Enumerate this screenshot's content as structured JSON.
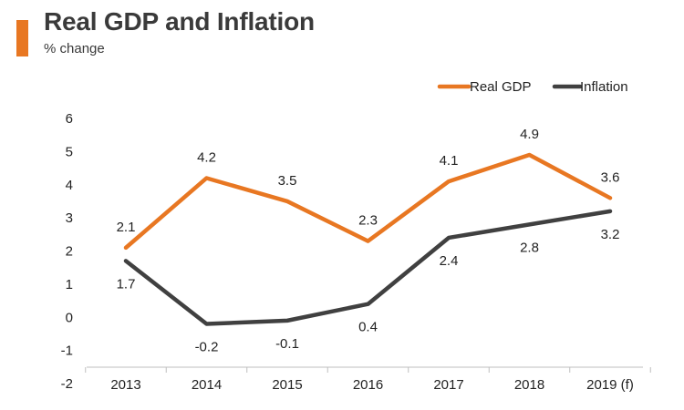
{
  "header": {
    "title": "Real GDP and Inflation",
    "subtitle": "% change",
    "accent_color": "#e87722"
  },
  "chart_data": {
    "type": "line",
    "title": "Real GDP and Inflation",
    "subtitle": "% change",
    "categories": [
      "2013",
      "2014",
      "2015",
      "2016",
      "2017",
      "2018",
      "2019 (f)"
    ],
    "ylim": [
      -2,
      6
    ],
    "yticks": [
      "6",
      "5",
      "4",
      "3",
      "2",
      "1",
      "0",
      "-1",
      "-2"
    ],
    "grid": false,
    "legend_position": "top-right",
    "series": [
      {
        "name": "Real GDP",
        "color": "#e87722",
        "values": [
          2.1,
          4.2,
          3.5,
          2.3,
          4.1,
          4.9,
          3.6
        ],
        "labels": [
          "2.1",
          "4.2",
          "3.5",
          "2.3",
          "4.1",
          "4.9",
          "3.6"
        ],
        "label_position": "above"
      },
      {
        "name": "Inflation",
        "color": "#404040",
        "values": [
          1.7,
          -0.2,
          -0.1,
          0.4,
          2.4,
          2.8,
          3.2
        ],
        "labels": [
          "1.7",
          "-0.2",
          "-0.1",
          "0.4",
          "2.4",
          "2.8",
          "3.2"
        ],
        "label_position": "below"
      }
    ]
  }
}
